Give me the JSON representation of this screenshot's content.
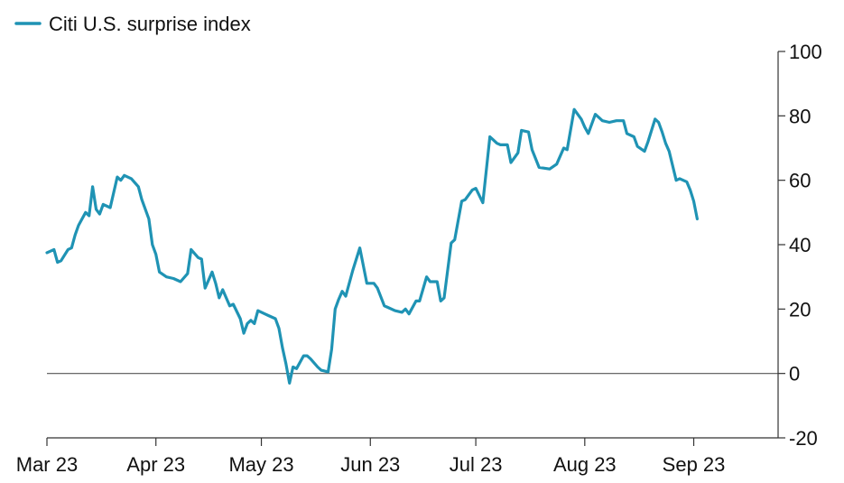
{
  "colors": {
    "series": "#1f93b4",
    "axis": "#333333",
    "zero_line": "#555555"
  },
  "chart_data": {
    "type": "line",
    "title": "",
    "xlabel": "",
    "ylabel": "",
    "ylim": [
      -20,
      100
    ],
    "y_ticks": [
      100,
      80,
      60,
      40,
      20,
      0,
      -20
    ],
    "y_axis_side": "right",
    "grid": false,
    "legend": "top-left",
    "reference_lines": [
      0
    ],
    "x_ticks": [
      "Mar 23",
      "Apr 23",
      "May 23",
      "Jun 23",
      "Jul 23",
      "Aug 23",
      "Sep 23"
    ],
    "series": [
      {
        "name": "Citi U.S. surprise index",
        "points": [
          [
            "2023-03-01",
            37.5
          ],
          [
            "2023-03-03",
            38.5
          ],
          [
            "2023-03-04",
            34.5
          ],
          [
            "2023-03-05",
            35
          ],
          [
            "2023-03-07",
            38.5
          ],
          [
            "2023-03-08",
            39
          ],
          [
            "2023-03-09",
            43
          ],
          [
            "2023-03-10",
            46
          ],
          [
            "2023-03-12",
            50
          ],
          [
            "2023-03-13",
            49
          ],
          [
            "2023-03-14",
            58
          ],
          [
            "2023-03-15",
            51
          ],
          [
            "2023-03-16",
            49.5
          ],
          [
            "2023-03-17",
            52.5
          ],
          [
            "2023-03-19",
            51.5
          ],
          [
            "2023-03-21",
            61
          ],
          [
            "2023-03-22",
            60
          ],
          [
            "2023-03-23",
            61.5
          ],
          [
            "2023-03-25",
            60.5
          ],
          [
            "2023-03-27",
            58
          ],
          [
            "2023-03-28",
            54
          ],
          [
            "2023-03-30",
            48
          ],
          [
            "2023-03-31",
            40
          ],
          [
            "2023-04-01",
            37
          ],
          [
            "2023-04-02",
            31.5
          ],
          [
            "2023-04-04",
            30
          ],
          [
            "2023-04-06",
            29.5
          ],
          [
            "2023-04-08",
            28.5
          ],
          [
            "2023-04-10",
            31
          ],
          [
            "2023-04-11",
            38.5
          ],
          [
            "2023-04-13",
            36
          ],
          [
            "2023-04-14",
            35.5
          ],
          [
            "2023-04-15",
            26.5
          ],
          [
            "2023-04-17",
            31.5
          ],
          [
            "2023-04-18",
            28
          ],
          [
            "2023-04-19",
            23.5
          ],
          [
            "2023-04-20",
            26
          ],
          [
            "2023-04-22",
            21
          ],
          [
            "2023-04-23",
            21.5
          ],
          [
            "2023-04-25",
            17
          ],
          [
            "2023-04-26",
            12.5
          ],
          [
            "2023-04-27",
            15.5
          ],
          [
            "2023-04-28",
            16.5
          ],
          [
            "2023-04-29",
            15.5
          ],
          [
            "2023-04-30",
            19.5
          ],
          [
            "2023-05-02",
            18.5
          ],
          [
            "2023-05-03",
            18
          ],
          [
            "2023-05-05",
            17
          ],
          [
            "2023-05-06",
            14
          ],
          [
            "2023-05-07",
            8
          ],
          [
            "2023-05-08",
            3
          ],
          [
            "2023-05-09",
            -3
          ],
          [
            "2023-05-10",
            2
          ],
          [
            "2023-05-11",
            1.5
          ],
          [
            "2023-05-13",
            5.5
          ],
          [
            "2023-05-14",
            5.5
          ],
          [
            "2023-05-15",
            4.5
          ],
          [
            "2023-05-17",
            2
          ],
          [
            "2023-05-18",
            1
          ],
          [
            "2023-05-20",
            0.5
          ],
          [
            "2023-05-21",
            7.5
          ],
          [
            "2023-05-22",
            20
          ],
          [
            "2023-05-23",
            23
          ],
          [
            "2023-05-24",
            25.5
          ],
          [
            "2023-05-25",
            24
          ],
          [
            "2023-05-27",
            32
          ],
          [
            "2023-05-29",
            39
          ],
          [
            "2023-05-31",
            28
          ],
          [
            "2023-06-02",
            28
          ],
          [
            "2023-06-03",
            26.5
          ],
          [
            "2023-06-05",
            21
          ],
          [
            "2023-06-06",
            20.5
          ],
          [
            "2023-06-08",
            19.5
          ],
          [
            "2023-06-10",
            19
          ],
          [
            "2023-06-11",
            20
          ],
          [
            "2023-06-12",
            18.5
          ],
          [
            "2023-06-14",
            22.5
          ],
          [
            "2023-06-15",
            22.5
          ],
          [
            "2023-06-17",
            30
          ],
          [
            "2023-06-18",
            28.5
          ],
          [
            "2023-06-20",
            28.5
          ],
          [
            "2023-06-21",
            22.5
          ],
          [
            "2023-06-22",
            23.5
          ],
          [
            "2023-06-24",
            40.5
          ],
          [
            "2023-06-25",
            41.5
          ],
          [
            "2023-06-27",
            53.5
          ],
          [
            "2023-06-28",
            54
          ],
          [
            "2023-06-30",
            57
          ],
          [
            "2023-07-01",
            57.5
          ],
          [
            "2023-07-03",
            53
          ],
          [
            "2023-07-05",
            73.5
          ],
          [
            "2023-07-06",
            72.5
          ],
          [
            "2023-07-07",
            71.5
          ],
          [
            "2023-07-08",
            71
          ],
          [
            "2023-07-10",
            71
          ],
          [
            "2023-07-11",
            65.5
          ],
          [
            "2023-07-13",
            68.5
          ],
          [
            "2023-07-14",
            75.5
          ],
          [
            "2023-07-16",
            75
          ],
          [
            "2023-07-17",
            69.5
          ],
          [
            "2023-07-19",
            64
          ],
          [
            "2023-07-22",
            63.5
          ],
          [
            "2023-07-24",
            65
          ],
          [
            "2023-07-26",
            70
          ],
          [
            "2023-07-27",
            69.5
          ],
          [
            "2023-07-29",
            82
          ],
          [
            "2023-07-31",
            79
          ],
          [
            "2023-08-01",
            76.5
          ],
          [
            "2023-08-02",
            74.5
          ],
          [
            "2023-08-04",
            80.5
          ],
          [
            "2023-08-05",
            79.5
          ],
          [
            "2023-08-06",
            78.5
          ],
          [
            "2023-08-08",
            78
          ],
          [
            "2023-08-10",
            78.5
          ],
          [
            "2023-08-12",
            78.5
          ],
          [
            "2023-08-13",
            74.5
          ],
          [
            "2023-08-15",
            73.5
          ],
          [
            "2023-08-16",
            70.5
          ],
          [
            "2023-08-18",
            69
          ],
          [
            "2023-08-19",
            72
          ],
          [
            "2023-08-21",
            79
          ],
          [
            "2023-08-22",
            78
          ],
          [
            "2023-08-23",
            75
          ],
          [
            "2023-08-24",
            71.5
          ],
          [
            "2023-08-25",
            69
          ],
          [
            "2023-08-27",
            60
          ],
          [
            "2023-08-28",
            60.5
          ],
          [
            "2023-08-30",
            59.5
          ],
          [
            "2023-08-31",
            57
          ],
          [
            "2023-09-01",
            53.5
          ],
          [
            "2023-09-02",
            48
          ]
        ]
      }
    ]
  }
}
